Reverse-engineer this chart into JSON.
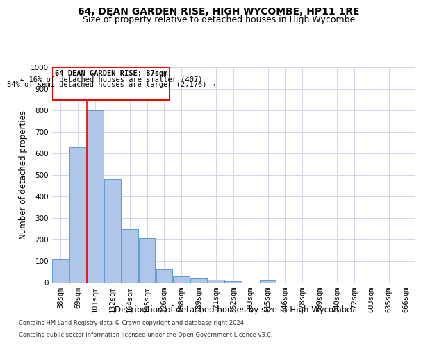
{
  "title": "64, DEAN GARDEN RISE, HIGH WYCOMBE, HP11 1RE",
  "subtitle": "Size of property relative to detached houses in High Wycombe",
  "xlabel": "Distribution of detached houses by size in High Wycombe",
  "ylabel": "Number of detached properties",
  "footnote1": "Contains HM Land Registry data © Crown copyright and database right 2024.",
  "footnote2": "Contains public sector information licensed under the Open Government Licence v3.0.",
  "annotation_line1": "64 DEAN GARDEN RISE: 87sqm",
  "annotation_line2": "← 16% of detached houses are smaller (407)",
  "annotation_line3": "84% of semi-detached houses are larger (2,176) →",
  "bar_labels": [
    "38sqm",
    "69sqm",
    "101sqm",
    "132sqm",
    "164sqm",
    "195sqm",
    "226sqm",
    "258sqm",
    "289sqm",
    "321sqm",
    "352sqm",
    "383sqm",
    "415sqm",
    "446sqm",
    "478sqm",
    "509sqm",
    "540sqm",
    "572sqm",
    "603sqm",
    "635sqm",
    "666sqm"
  ],
  "bar_values": [
    110,
    630,
    800,
    480,
    250,
    205,
    60,
    28,
    20,
    14,
    6,
    0,
    10,
    0,
    0,
    0,
    0,
    0,
    0,
    0,
    0
  ],
  "bar_color": "#aec6e8",
  "bar_edge_color": "#5b9bd5",
  "vline_index": 1.525,
  "ylim": [
    0,
    1000
  ],
  "yticks": [
    0,
    100,
    200,
    300,
    400,
    500,
    600,
    700,
    800,
    900,
    1000
  ],
  "background_color": "#ffffff",
  "grid_color": "#d0d8e8",
  "title_fontsize": 10,
  "subtitle_fontsize": 9,
  "xlabel_fontsize": 8.5,
  "ylabel_fontsize": 8.5,
  "tick_fontsize": 7.5,
  "annot_fontsize": 7.5,
  "footnote_fontsize": 6
}
